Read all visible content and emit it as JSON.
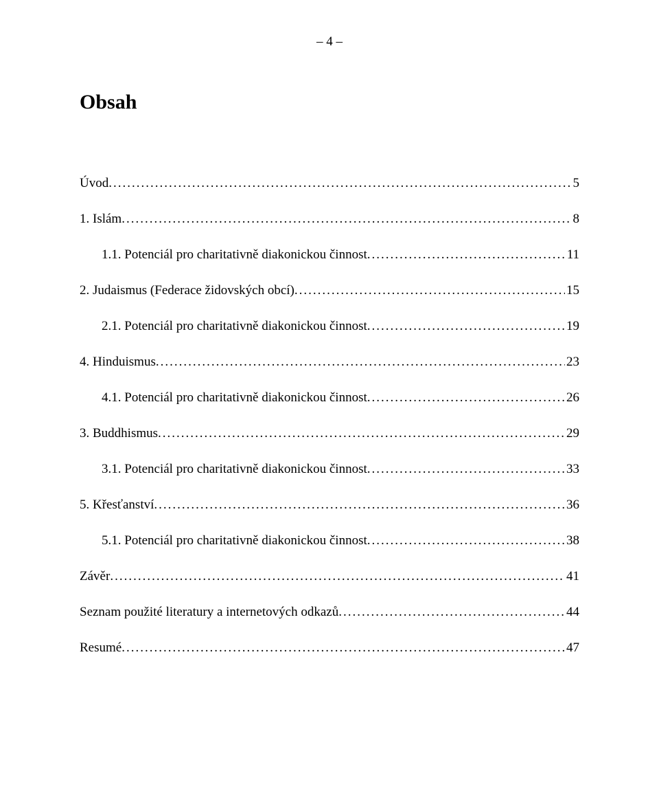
{
  "page_number": "– 4 –",
  "title": "Obsah",
  "text_color": "#000000",
  "background_color": "#ffffff",
  "font_family": "Times New Roman",
  "title_fontsize": 30,
  "body_fontsize": 19,
  "entries": [
    {
      "label": "Úvod",
      "page": "5",
      "indent": false
    },
    {
      "label": "1. Islám",
      "page": "8",
      "indent": false
    },
    {
      "label": "1.1. Potenciál pro charitativně diakonickou činnost",
      "page": "11",
      "indent": true
    },
    {
      "label": "2. Judaismus (Federace židovských obcí)",
      "page": "15",
      "indent": false
    },
    {
      "label": "2.1. Potenciál pro charitativně diakonickou činnost",
      "page": "19",
      "indent": true
    },
    {
      "label": "4. Hinduismus",
      "page": "23",
      "indent": false
    },
    {
      "label": "4.1. Potenciál pro charitativně diakonickou činnost",
      "page": "26",
      "indent": true
    },
    {
      "label": "3. Buddhismus",
      "page": "29",
      "indent": false
    },
    {
      "label": "3.1. Potenciál pro charitativně diakonickou činnost",
      "page": "33",
      "indent": true
    },
    {
      "label": "5. Křesťanství",
      "page": "36",
      "indent": false
    },
    {
      "label": "5.1. Potenciál pro charitativně diakonickou činnost",
      "page": "38",
      "indent": true
    },
    {
      "label": "Závěr",
      "page": "41",
      "indent": false
    },
    {
      "label": "Seznam použité literatury a internetových odkazů",
      "page": "44",
      "indent": false
    },
    {
      "label": "Resumé",
      "page": "47",
      "indent": false
    }
  ]
}
